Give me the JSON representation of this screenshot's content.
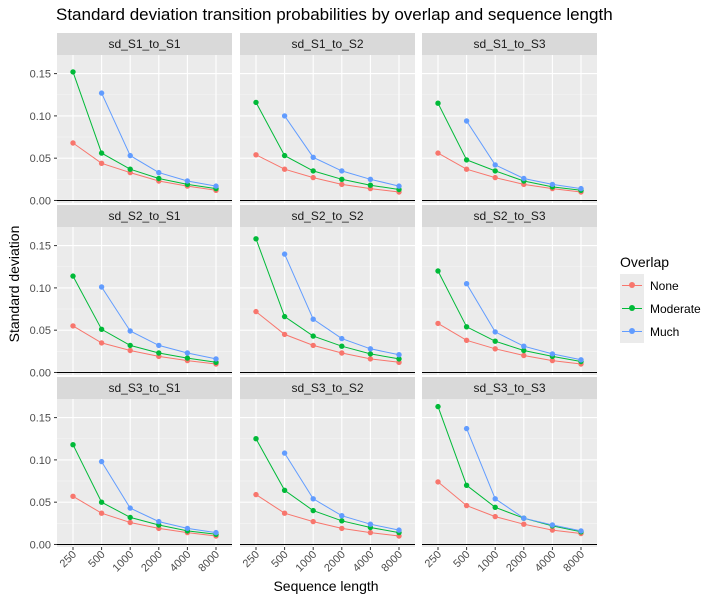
{
  "chart_data": {
    "type": "line",
    "title": "Standard deviation transition probabilities by overlap and sequence length",
    "xlabel": "Sequence length",
    "ylabel": "Standard deviation",
    "categories": [
      "250",
      "500",
      "1000",
      "2000",
      "4000",
      "8000"
    ],
    "y_ticks": [
      "0.00",
      "0.05",
      "0.10",
      "0.15"
    ],
    "ylim": [
      -0.003,
      0.172
    ],
    "legend": {
      "title": "Overlap",
      "position": "right",
      "entries": [
        {
          "name": "None",
          "color": "#F8766D"
        },
        {
          "name": "Moderate",
          "color": "#00BA38"
        },
        {
          "name": "Much",
          "color": "#619CFF"
        }
      ]
    },
    "grid": true,
    "panels": [
      {
        "strip": "sd_S1_to_S1",
        "series": [
          {
            "name": "None",
            "values": [
              0.068,
              0.044,
              0.033,
              0.023,
              0.017,
              0.012
            ]
          },
          {
            "name": "Moderate",
            "values": [
              0.152,
              0.056,
              0.037,
              0.026,
              0.019,
              0.014
            ]
          },
          {
            "name": "Much",
            "values": [
              null,
              0.127,
              0.053,
              0.033,
              0.023,
              0.017
            ]
          }
        ]
      },
      {
        "strip": "sd_S1_to_S2",
        "series": [
          {
            "name": "None",
            "values": [
              0.054,
              0.037,
              0.027,
              0.019,
              0.014,
              0.01
            ]
          },
          {
            "name": "Moderate",
            "values": [
              0.116,
              0.053,
              0.035,
              0.025,
              0.018,
              0.013
            ]
          },
          {
            "name": "Much",
            "values": [
              null,
              0.1,
              0.051,
              0.035,
              0.025,
              0.017
            ]
          }
        ]
      },
      {
        "strip": "sd_S1_to_S3",
        "series": [
          {
            "name": "None",
            "values": [
              0.056,
              0.037,
              0.027,
              0.019,
              0.014,
              0.01
            ]
          },
          {
            "name": "Moderate",
            "values": [
              0.115,
              0.048,
              0.035,
              0.023,
              0.016,
              0.012
            ]
          },
          {
            "name": "Much",
            "values": [
              null,
              0.094,
              0.042,
              0.026,
              0.019,
              0.014
            ]
          }
        ]
      },
      {
        "strip": "sd_S2_to_S1",
        "series": [
          {
            "name": "None",
            "values": [
              0.055,
              0.035,
              0.026,
              0.019,
              0.014,
              0.01
            ]
          },
          {
            "name": "Moderate",
            "values": [
              0.114,
              0.051,
              0.032,
              0.023,
              0.017,
              0.012
            ]
          },
          {
            "name": "Much",
            "values": [
              null,
              0.101,
              0.049,
              0.032,
              0.023,
              0.016
            ]
          }
        ]
      },
      {
        "strip": "sd_S2_to_S2",
        "series": [
          {
            "name": "None",
            "values": [
              0.072,
              0.045,
              0.032,
              0.023,
              0.016,
              0.012
            ]
          },
          {
            "name": "Moderate",
            "values": [
              0.158,
              0.066,
              0.043,
              0.031,
              0.022,
              0.016
            ]
          },
          {
            "name": "Much",
            "values": [
              null,
              0.14,
              0.063,
              0.04,
              0.028,
              0.021
            ]
          }
        ]
      },
      {
        "strip": "sd_S2_to_S3",
        "series": [
          {
            "name": "None",
            "values": [
              0.058,
              0.038,
              0.028,
              0.02,
              0.014,
              0.01
            ]
          },
          {
            "name": "Moderate",
            "values": [
              0.12,
              0.054,
              0.037,
              0.026,
              0.019,
              0.013
            ]
          },
          {
            "name": "Much",
            "values": [
              null,
              0.105,
              0.048,
              0.031,
              0.022,
              0.015
            ]
          }
        ]
      },
      {
        "strip": "sd_S3_to_S1",
        "series": [
          {
            "name": "None",
            "values": [
              0.057,
              0.037,
              0.026,
              0.019,
              0.014,
              0.01
            ]
          },
          {
            "name": "Moderate",
            "values": [
              0.118,
              0.05,
              0.032,
              0.023,
              0.016,
              0.012
            ]
          },
          {
            "name": "Much",
            "values": [
              null,
              0.098,
              0.043,
              0.027,
              0.019,
              0.014
            ]
          }
        ]
      },
      {
        "strip": "sd_S3_to_S2",
        "series": [
          {
            "name": "None",
            "values": [
              0.059,
              0.037,
              0.027,
              0.019,
              0.014,
              0.01
            ]
          },
          {
            "name": "Moderate",
            "values": [
              0.125,
              0.064,
              0.04,
              0.028,
              0.02,
              0.014
            ]
          },
          {
            "name": "Much",
            "values": [
              null,
              0.108,
              0.054,
              0.034,
              0.024,
              0.017
            ]
          }
        ]
      },
      {
        "strip": "sd_S3_to_S3",
        "series": [
          {
            "name": "None",
            "values": [
              0.074,
              0.046,
              0.033,
              0.024,
              0.017,
              0.013
            ]
          },
          {
            "name": "Moderate",
            "values": [
              0.163,
              0.07,
              0.044,
              0.031,
              0.022,
              0.015
            ]
          },
          {
            "name": "Much",
            "values": [
              null,
              0.137,
              0.054,
              0.031,
              0.023,
              0.016
            ]
          }
        ]
      }
    ]
  }
}
